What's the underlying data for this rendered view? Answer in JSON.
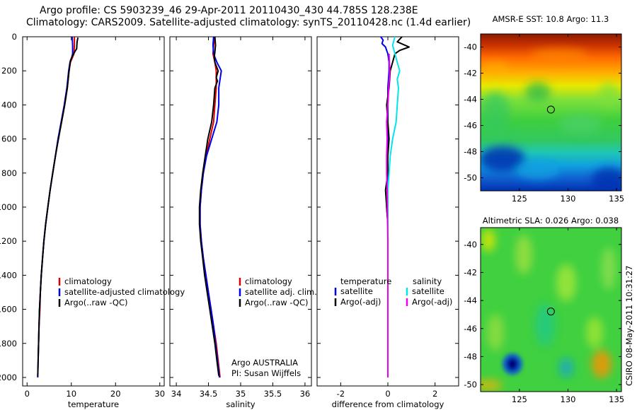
{
  "header": {
    "line1": "Argo profile: CS 5903239_46 29-Apr-2011 20110430_430 44.785S 128.238E",
    "line2": "Climatology: CARS2009. Satellite-adjusted climatology: synTS_20110428.nc (1.4d earlier)"
  },
  "side_text": "CSIRO 08-May-2011 10:31:27",
  "colors": {
    "climatology": "#dd0000",
    "satellite": "#0000ee",
    "argo": "#000000",
    "sal_satellite": "#00e5ee",
    "sal_argo": "#ee00ee"
  },
  "chart_data": [
    {
      "id": "temperature",
      "type": "line",
      "xlabel": "temperature",
      "ylabel": "",
      "xlim": [
        -1,
        31
      ],
      "ylim": [
        2050,
        0
      ],
      "xticks": [
        0,
        10,
        20,
        30
      ],
      "yticks": [
        0,
        200,
        400,
        600,
        800,
        1000,
        1200,
        1400,
        1600,
        1800,
        2000
      ],
      "legend": [
        "climatology",
        "satellite-adjusted climatology",
        "Argo(..raw -QC)"
      ],
      "series": [
        {
          "name": "climatology",
          "color": "climatology",
          "points": [
            [
              10.7,
              0
            ],
            [
              10.7,
              50
            ],
            [
              10.6,
              100
            ],
            [
              10.3,
              120
            ],
            [
              9.8,
              150
            ],
            [
              9.5,
              200
            ],
            [
              9.1,
              300
            ],
            [
              8.5,
              400
            ],
            [
              7.8,
              500
            ],
            [
              7,
              600
            ],
            [
              6.4,
              700
            ],
            [
              5.8,
              800
            ],
            [
              5.2,
              900
            ],
            [
              4.7,
              1000
            ],
            [
              4.2,
              1100
            ],
            [
              3.8,
              1200
            ],
            [
              3.5,
              1300
            ],
            [
              3.2,
              1400
            ],
            [
              3,
              1500
            ],
            [
              2.9,
              1600
            ],
            [
              2.7,
              1700
            ],
            [
              2.6,
              1800
            ],
            [
              2.5,
              1880
            ]
          ]
        },
        {
          "name": "satellite-adjusted climatology",
          "color": "satellite",
          "points": [
            [
              10.2,
              0
            ],
            [
              10.3,
              50
            ],
            [
              10.3,
              100
            ],
            [
              10.1,
              120
            ],
            [
              9.7,
              150
            ],
            [
              9.4,
              200
            ],
            [
              9,
              300
            ],
            [
              8.4,
              400
            ],
            [
              7.7,
              500
            ],
            [
              7,
              600
            ],
            [
              6.4,
              700
            ],
            [
              5.8,
              800
            ],
            [
              5.2,
              900
            ],
            [
              4.7,
              1000
            ],
            [
              4.2,
              1100
            ],
            [
              3.8,
              1200
            ],
            [
              3.5,
              1300
            ],
            [
              3.2,
              1400
            ],
            [
              3,
              1500
            ],
            [
              2.8,
              1600
            ],
            [
              2.7,
              1700
            ],
            [
              2.6,
              1800
            ],
            [
              2.5,
              1900
            ],
            [
              2.4,
              2000
            ]
          ]
        },
        {
          "name": "Argo(..raw -QC)",
          "color": "argo",
          "points": [
            [
              11.5,
              5
            ],
            [
              11.3,
              30
            ],
            [
              11.2,
              70
            ],
            [
              10.3,
              110
            ],
            [
              9.8,
              140
            ],
            [
              9.5,
              200
            ],
            [
              9.1,
              300
            ],
            [
              8.5,
              400
            ],
            [
              7.8,
              500
            ],
            [
              7.1,
              600
            ],
            [
              6.4,
              700
            ],
            [
              5.8,
              800
            ],
            [
              5.2,
              900
            ],
            [
              4.7,
              1000
            ],
            [
              4.2,
              1100
            ],
            [
              3.8,
              1200
            ],
            [
              3.5,
              1300
            ],
            [
              3.2,
              1400
            ],
            [
              3,
              1500
            ],
            [
              2.8,
              1600
            ],
            [
              2.7,
              1700
            ],
            [
              2.6,
              1800
            ],
            [
              2.5,
              1900
            ],
            [
              2.4,
              1995
            ]
          ]
        }
      ]
    },
    {
      "id": "salinity",
      "type": "line",
      "xlabel": "salinity",
      "xlim": [
        33.9,
        36.1
      ],
      "ylim": [
        2050,
        0
      ],
      "xticks": [
        34,
        34.5,
        35,
        35.5,
        36
      ],
      "xticklabels": [
        "34",
        "34.5",
        "35",
        "35.5",
        "36"
      ],
      "legend": [
        "climatology",
        "satellite adj. clim.",
        "Argo(..raw -QC)"
      ],
      "annotations": [
        "Argo AUSTRALIA",
        "PI: Susan Wijffels"
      ],
      "series": [
        {
          "name": "climatology",
          "color": "climatology",
          "points": [
            [
              34.6,
              0
            ],
            [
              34.58,
              50
            ],
            [
              34.57,
              100
            ],
            [
              34.6,
              150
            ],
            [
              34.62,
              200
            ],
            [
              34.62,
              300
            ],
            [
              34.6,
              400
            ],
            [
              34.58,
              500
            ],
            [
              34.52,
              600
            ],
            [
              34.46,
              700
            ],
            [
              34.42,
              800
            ],
            [
              34.39,
              900
            ],
            [
              34.37,
              1000
            ],
            [
              34.37,
              1100
            ],
            [
              34.39,
              1200
            ],
            [
              34.42,
              1300
            ],
            [
              34.46,
              1400
            ],
            [
              34.5,
              1500
            ],
            [
              34.54,
              1600
            ],
            [
              34.58,
              1700
            ],
            [
              34.62,
              1800
            ],
            [
              34.65,
              1900
            ],
            [
              34.68,
              2000
            ]
          ]
        },
        {
          "name": "satellite adj. clim.",
          "color": "satellite",
          "points": [
            [
              34.58,
              0
            ],
            [
              34.57,
              50
            ],
            [
              34.58,
              100
            ],
            [
              34.63,
              150
            ],
            [
              34.7,
              200
            ],
            [
              34.68,
              250
            ],
            [
              34.66,
              300
            ],
            [
              34.66,
              400
            ],
            [
              34.63,
              500
            ],
            [
              34.55,
              600
            ],
            [
              34.47,
              700
            ],
            [
              34.42,
              800
            ],
            [
              34.39,
              900
            ],
            [
              34.37,
              1000
            ],
            [
              34.37,
              1100
            ],
            [
              34.39,
              1200
            ],
            [
              34.42,
              1300
            ],
            [
              34.46,
              1400
            ],
            [
              34.5,
              1500
            ],
            [
              34.54,
              1600
            ],
            [
              34.58,
              1700
            ],
            [
              34.61,
              1800
            ],
            [
              34.64,
              1900
            ],
            [
              34.67,
              2000
            ]
          ]
        },
        {
          "name": "Argo(..raw -QC)",
          "color": "argo",
          "points": [
            [
              34.6,
              0
            ],
            [
              34.61,
              50
            ],
            [
              34.6,
              90
            ],
            [
              34.59,
              120
            ],
            [
              34.6,
              150
            ],
            [
              34.65,
              200
            ],
            [
              34.62,
              240
            ],
            [
              34.64,
              260
            ],
            [
              34.6,
              300
            ],
            [
              34.58,
              400
            ],
            [
              34.55,
              500
            ],
            [
              34.49,
              600
            ],
            [
              34.45,
              700
            ],
            [
              34.41,
              800
            ],
            [
              34.38,
              900
            ],
            [
              34.36,
              1000
            ],
            [
              34.36,
              1100
            ],
            [
              34.38,
              1200
            ],
            [
              34.41,
              1300
            ],
            [
              34.44,
              1400
            ],
            [
              34.48,
              1500
            ],
            [
              34.52,
              1600
            ],
            [
              34.56,
              1700
            ],
            [
              34.6,
              1800
            ],
            [
              34.63,
              1900
            ],
            [
              34.66,
              1990
            ]
          ]
        }
      ]
    },
    {
      "id": "difference",
      "type": "line",
      "xlabel": "difference from climatology",
      "xlim": [
        -3,
        3
      ],
      "ylim": [
        2050,
        0
      ],
      "xticks": [
        -2,
        0,
        2
      ],
      "legend_left_title": "temperature",
      "legend_right_title": "salinity",
      "legend_left": [
        "satellite",
        "Argo(-adj)"
      ],
      "legend_right": [
        "satellite",
        "Argo(-adj)"
      ],
      "series": [
        {
          "name": "temperature satellite",
          "color": "satellite",
          "points": [
            [
              -0.3,
              0
            ],
            [
              -0.2,
              20
            ],
            [
              -0.25,
              40
            ],
            [
              -0.1,
              60
            ],
            [
              -0.05,
              80
            ],
            [
              0,
              100
            ],
            [
              0.05,
              150
            ],
            [
              0.05,
              200
            ],
            [
              0,
              300
            ],
            [
              0,
              400
            ],
            [
              0,
              500
            ],
            [
              0,
              700
            ],
            [
              0,
              900
            ],
            [
              -0.05,
              1000
            ],
            [
              0,
              1100
            ],
            [
              0,
              1200
            ],
            [
              0,
              1400
            ],
            [
              0,
              1600
            ],
            [
              0,
              1800
            ],
            [
              0,
              2000
            ]
          ]
        },
        {
          "name": "temperature Argo(-adj)",
          "color": "argo",
          "points": [
            [
              0.6,
              0
            ],
            [
              0.4,
              30
            ],
            [
              0.9,
              60
            ],
            [
              0.5,
              80
            ],
            [
              0.3,
              100
            ],
            [
              0.2,
              150
            ],
            [
              0.1,
              200
            ],
            [
              0.05,
              300
            ],
            [
              -0.05,
              400
            ],
            [
              0,
              500
            ],
            [
              0.05,
              600
            ],
            [
              0,
              700
            ],
            [
              0,
              800
            ],
            [
              -0.1,
              900
            ],
            [
              -0.05,
              1000
            ],
            [
              0,
              1100
            ],
            [
              0,
              1200
            ],
            [
              0,
              1400
            ],
            [
              0,
              1600
            ],
            [
              0,
              1800
            ],
            [
              0,
              2000
            ]
          ]
        },
        {
          "name": "salinity satellite",
          "color": "sal_satellite",
          "points": [
            [
              0.3,
              0
            ],
            [
              0.2,
              50
            ],
            [
              0.3,
              100
            ],
            [
              0.4,
              150
            ],
            [
              0.5,
              200
            ],
            [
              0.4,
              250
            ],
            [
              0.45,
              300
            ],
            [
              0.4,
              400
            ],
            [
              0.35,
              500
            ],
            [
              0.2,
              600
            ],
            [
              0.1,
              700
            ],
            [
              0.05,
              800
            ],
            [
              0,
              900
            ],
            [
              0,
              1000
            ],
            [
              0,
              1200
            ],
            [
              0,
              1400
            ],
            [
              0,
              1600
            ],
            [
              0,
              1800
            ],
            [
              0,
              2000
            ]
          ]
        },
        {
          "name": "salinity Argo(-adj)",
          "color": "sal_argo",
          "points": [
            [
              0.05,
              100
            ],
            [
              0.08,
              200
            ],
            [
              0.04,
              300
            ],
            [
              0,
              400
            ],
            [
              -0.05,
              500
            ],
            [
              -0.03,
              600
            ],
            [
              -0.05,
              700
            ],
            [
              -0.05,
              800
            ],
            [
              -0.03,
              900
            ],
            [
              -0.02,
              1000
            ],
            [
              0,
              1200
            ],
            [
              0,
              1500
            ],
            [
              0,
              1800
            ],
            [
              0,
              2000
            ]
          ]
        }
      ]
    },
    {
      "id": "sst_map",
      "type": "heatmap",
      "title": "AMSR-E SST: 10.8 Argo: 11.3",
      "xlim": [
        121,
        135.5
      ],
      "ylim": [
        -51,
        -39
      ],
      "xticks": [
        125,
        130,
        135
      ],
      "yticks": [
        -40,
        -42,
        -44,
        -46,
        -48,
        -50
      ],
      "argo_position": [
        128.238,
        -44.785
      ]
    },
    {
      "id": "sla_map",
      "type": "heatmap",
      "title": "Altimetric SLA: 0.026 Argo: 0.038",
      "xlim": [
        121,
        135.5
      ],
      "ylim": [
        -50.5,
        -38.8
      ],
      "xticks": [
        125,
        130,
        135
      ],
      "yticks": [
        -40,
        -42,
        -44,
        -46,
        -48,
        -50
      ],
      "argo_position": [
        128.238,
        -44.785
      ]
    }
  ]
}
